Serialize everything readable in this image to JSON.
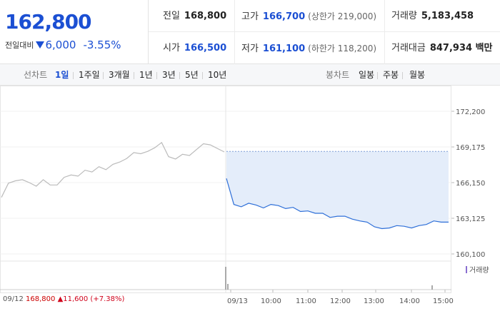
{
  "summary": {
    "price": "162,800",
    "change_label": "전일대비",
    "change_value": "6,000",
    "change_pct": "-3.55%"
  },
  "stats": {
    "prev_close": {
      "label": "전일",
      "value": "168,800"
    },
    "high": {
      "label": "고가",
      "value": "166,700",
      "sub": "(상한가 219,000)"
    },
    "volume": {
      "label": "거래량",
      "value": "5,183,458"
    },
    "open": {
      "label": "시가",
      "value": "166,500"
    },
    "low": {
      "label": "저가",
      "value": "161,100",
      "sub": "(하한가 118,200)"
    },
    "amount": {
      "label": "거래대금",
      "value": "847,934 백만"
    }
  },
  "toolbar": {
    "line_label": "선차트",
    "periods": [
      "1일",
      "1주일",
      "3개월",
      "1년",
      "3년",
      "5년",
      "10년"
    ],
    "active_period": "1일",
    "candle_label": "봉차트",
    "candle_periods": [
      "일봉",
      "주봉",
      "월봉"
    ]
  },
  "chart_data": {
    "type": "line",
    "y_ticks": [
      "172,200",
      "169,175",
      "166,150",
      "163,125",
      "160,100"
    ],
    "y_tick_values": [
      172200,
      169175,
      166150,
      163125,
      160100
    ],
    "ylim": [
      160100,
      172200
    ],
    "prev_close": 168800,
    "x_labels": [
      "09/13",
      "10:00",
      "11:00",
      "12:00",
      "13:00",
      "14:00",
      "15:00"
    ],
    "volume_label": "거래량",
    "series": [
      {
        "color_prev": "#bbbbbb",
        "values": [
          164900,
          166100,
          166300,
          166400,
          166150,
          165850,
          166400,
          165950,
          165950,
          166600,
          166800,
          166700,
          167200,
          167050,
          167500,
          167250,
          167700,
          167900,
          168200,
          168700,
          168600,
          168800,
          169100,
          169550,
          168350,
          168150,
          168550,
          168450,
          168950,
          169450,
          169350,
          169050,
          168750
        ]
      },
      {
        "color_today": "#2e6fd8",
        "values": [
          166500,
          164300,
          164100,
          164400,
          164250,
          164000,
          164300,
          164200,
          163950,
          164050,
          163700,
          163750,
          163550,
          163550,
          163200,
          163300,
          163300,
          163050,
          162900,
          162800,
          162400,
          162250,
          162300,
          162500,
          162450,
          162300,
          162500,
          162600,
          162900,
          162800,
          162800
        ]
      }
    ]
  },
  "footer": {
    "prev_date": "09/12",
    "prev_price": "168,800",
    "prev_change": "▲11,600 (+7.38%)"
  }
}
